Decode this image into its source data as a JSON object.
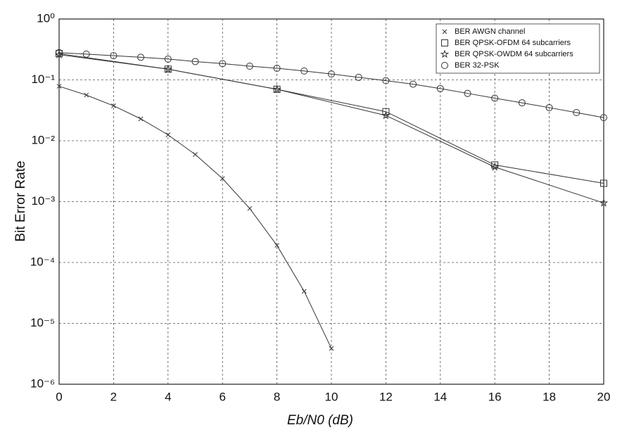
{
  "chart_data": {
    "type": "line",
    "x_label": "Eb/N0 (dB)",
    "y_label": "Bit Error Rate",
    "log_y": true,
    "grid": true,
    "legend": "upper right",
    "xlim": [
      0,
      20
    ],
    "xticks": [
      0,
      2,
      4,
      6,
      8,
      10,
      12,
      14,
      16,
      18,
      20
    ],
    "ylim": [
      1e-06,
      1
    ],
    "yticks": [
      {
        "value": 1,
        "label": "10⁰"
      },
      {
        "value": 0.1,
        "label": "10⁻¹"
      },
      {
        "value": 0.01,
        "label": "10⁻²"
      },
      {
        "value": 0.001,
        "label": "10⁻³"
      },
      {
        "value": 0.0001,
        "label": "10⁻⁴"
      },
      {
        "value": 1e-05,
        "label": "10⁻⁵"
      },
      {
        "value": 1e-06,
        "label": "10⁻⁶"
      }
    ],
    "series": [
      {
        "name": "BER AWGN channel",
        "marker": "x",
        "color": "#333333",
        "x": [
          0,
          1,
          2,
          3,
          4,
          5,
          6,
          7,
          8,
          9,
          10
        ],
        "values": [
          0.0786,
          0.0563,
          0.0375,
          0.0229,
          0.0125,
          0.00595,
          0.00239,
          0.000773,
          0.000191,
          3.36e-05,
          3.87e-06
        ]
      },
      {
        "name": "BER QPSK-OFDM 64 subcarriers",
        "marker": "square",
        "color": "#333333",
        "x": [
          0,
          4,
          8,
          12,
          16,
          20
        ],
        "values": [
          0.27,
          0.15,
          0.07,
          0.03,
          0.004,
          0.002
        ]
      },
      {
        "name": "BER QPSK-OWDM 64 subcarriers",
        "marker": "star",
        "color": "#333333",
        "x": [
          0,
          4,
          8,
          12,
          16,
          20
        ],
        "values": [
          0.26,
          0.15,
          0.07,
          0.026,
          0.0037,
          0.00095
        ]
      },
      {
        "name": "BER 32-PSK",
        "marker": "circle",
        "color": "#333333",
        "x": [
          0,
          1,
          2,
          3,
          4,
          5,
          6,
          7,
          8,
          9,
          10,
          11,
          12,
          13,
          14,
          15,
          16,
          17,
          18,
          19,
          20
        ],
        "values": [
          0.28,
          0.265,
          0.25,
          0.235,
          0.22,
          0.2,
          0.185,
          0.168,
          0.155,
          0.14,
          0.125,
          0.11,
          0.097,
          0.085,
          0.072,
          0.06,
          0.05,
          0.042,
          0.035,
          0.029,
          0.024
        ]
      }
    ]
  }
}
